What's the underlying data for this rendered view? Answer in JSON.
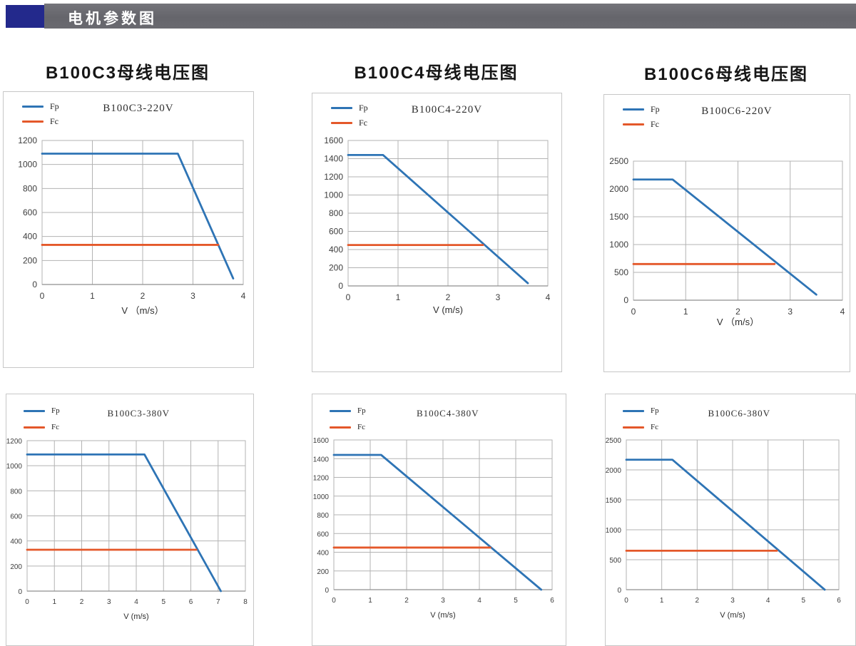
{
  "header": {
    "title": "电机参数图",
    "bar_color": "#68686E",
    "accent_color": "#23298C",
    "text_color": "#FFFFFF"
  },
  "colors": {
    "fp_line": "#2E74B5",
    "fc_line": "#E4582A",
    "grid": "#B3B3B3",
    "axis_line": "#8F8F8F",
    "axis_text": "#3D3D3D"
  },
  "chart_data": [
    {
      "type": "line",
      "heading": "B100C3母线电压图",
      "inner_title": "B100C3-220V",
      "xlabel": "V （m/s）",
      "xlim": [
        0,
        4
      ],
      "xticks": [
        0,
        1,
        2,
        3,
        4
      ],
      "ylim": [
        0,
        1200
      ],
      "yticks": [
        0,
        200,
        400,
        600,
        800,
        1000,
        1200
      ],
      "grid": true,
      "legend_position": "top-left",
      "legend": [
        {
          "label": "Fp",
          "color": "#2E74B5"
        },
        {
          "label": "Fc",
          "color": "#E4582A"
        }
      ],
      "series": [
        {
          "name": "Fp",
          "color": "#2E74B5",
          "points": [
            [
              0,
              1090
            ],
            [
              2.7,
              1090
            ],
            [
              3.8,
              50
            ]
          ]
        },
        {
          "name": "Fc",
          "color": "#E4582A",
          "points": [
            [
              0,
              330
            ],
            [
              3.5,
              330
            ]
          ]
        }
      ]
    },
    {
      "type": "line",
      "heading": "B100C4母线电压图",
      "inner_title": "B100C4-220V",
      "xlabel": "V (m/s)",
      "xlim": [
        0,
        4
      ],
      "xticks": [
        0,
        1,
        2,
        3,
        4
      ],
      "ylim": [
        0,
        1600
      ],
      "yticks": [
        0,
        200,
        400,
        600,
        800,
        1000,
        1200,
        1400,
        1600
      ],
      "grid": true,
      "legend_position": "top-left",
      "legend": [
        {
          "label": "Fp",
          "color": "#2E74B5"
        },
        {
          "label": "Fc",
          "color": "#E4582A"
        }
      ],
      "series": [
        {
          "name": "Fp",
          "color": "#2E74B5",
          "points": [
            [
              0,
              1440
            ],
            [
              0.7,
              1440
            ],
            [
              3.6,
              30
            ]
          ]
        },
        {
          "name": "Fc",
          "color": "#E4582A",
          "points": [
            [
              0,
              450
            ],
            [
              2.7,
              450
            ]
          ]
        }
      ]
    },
    {
      "type": "line",
      "heading": "B100C6母线电压图",
      "inner_title": "B100C6-220V",
      "xlabel": "V （m/s）",
      "xlim": [
        0,
        4
      ],
      "xticks": [
        0,
        1,
        2,
        3,
        4
      ],
      "ylim": [
        0,
        2500
      ],
      "yticks": [
        0,
        500,
        1000,
        1500,
        2000,
        2500
      ],
      "grid": true,
      "legend_position": "top-left",
      "legend": [
        {
          "label": "Fp",
          "color": "#2E74B5"
        },
        {
          "label": "Fc",
          "color": "#E4582A"
        }
      ],
      "series": [
        {
          "name": "Fp",
          "color": "#2E74B5",
          "points": [
            [
              0,
              2170
            ],
            [
              0.75,
              2170
            ],
            [
              3.5,
              100
            ]
          ]
        },
        {
          "name": "Fc",
          "color": "#E4582A",
          "points": [
            [
              0,
              650
            ],
            [
              2.7,
              650
            ]
          ]
        }
      ]
    },
    {
      "type": "line",
      "inner_title": "B100C3-380V",
      "xlabel": "V (m/s)",
      "xlim": [
        0,
        8
      ],
      "xticks": [
        0,
        1,
        2,
        3,
        4,
        5,
        6,
        7,
        8
      ],
      "ylim": [
        0,
        1200
      ],
      "yticks": [
        0,
        200,
        400,
        600,
        800,
        1000,
        1200
      ],
      "grid": true,
      "legend_position": "top-left",
      "legend": [
        {
          "label": "Fp",
          "color": "#2E74B5"
        },
        {
          "label": "Fc",
          "color": "#E4582A"
        }
      ],
      "series": [
        {
          "name": "Fp",
          "color": "#2E74B5",
          "points": [
            [
              0,
              1090
            ],
            [
              4.3,
              1090
            ],
            [
              7.1,
              0
            ]
          ]
        },
        {
          "name": "Fc",
          "color": "#E4582A",
          "points": [
            [
              0,
              330
            ],
            [
              6.2,
              330
            ]
          ]
        }
      ]
    },
    {
      "type": "line",
      "inner_title": "B100C4-380V",
      "xlabel": "V (m/s)",
      "xlim": [
        0,
        6
      ],
      "xticks": [
        0,
        1,
        2,
        3,
        4,
        5,
        6
      ],
      "ylim": [
        0,
        1600
      ],
      "yticks": [
        0,
        200,
        400,
        600,
        800,
        1000,
        1200,
        1400,
        1600
      ],
      "grid": true,
      "legend_position": "top-left",
      "legend": [
        {
          "label": "Fp",
          "color": "#2E74B5"
        },
        {
          "label": "Fc",
          "color": "#E4582A"
        }
      ],
      "series": [
        {
          "name": "Fp",
          "color": "#2E74B5",
          "points": [
            [
              0,
              1440
            ],
            [
              1.3,
              1440
            ],
            [
              5.7,
              0
            ]
          ]
        },
        {
          "name": "Fc",
          "color": "#E4582A",
          "points": [
            [
              0,
              450
            ],
            [
              4.3,
              450
            ]
          ]
        }
      ]
    },
    {
      "type": "line",
      "inner_title": "B100C6-380V",
      "xlabel": "V (m/s)",
      "xlim": [
        0,
        6
      ],
      "xticks": [
        0,
        1,
        2,
        3,
        4,
        5,
        6
      ],
      "ylim": [
        0,
        2500
      ],
      "yticks": [
        0,
        500,
        1000,
        1500,
        2000,
        2500
      ],
      "grid": true,
      "legend_position": "top-left",
      "legend": [
        {
          "label": "Fp",
          "color": "#2E74B5"
        },
        {
          "label": "Fc",
          "color": "#E4582A"
        }
      ],
      "series": [
        {
          "name": "Fp",
          "color": "#2E74B5",
          "points": [
            [
              0,
              2170
            ],
            [
              1.3,
              2170
            ],
            [
              5.6,
              0
            ]
          ]
        },
        {
          "name": "Fc",
          "color": "#E4582A",
          "points": [
            [
              0,
              650
            ],
            [
              4.25,
              650
            ]
          ]
        }
      ]
    }
  ]
}
